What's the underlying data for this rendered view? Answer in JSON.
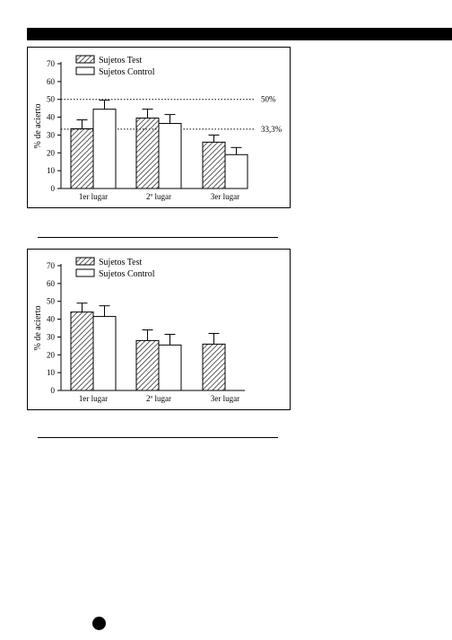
{
  "chart_data": [
    {
      "type": "bar",
      "ylabel": "% de acierto",
      "ylim": [
        0,
        70
      ],
      "yticks": [
        "0",
        "10",
        "20",
        "30",
        "40",
        "50",
        "60",
        "70"
      ],
      "categories": [
        "1er lugar",
        "2º lugar",
        "3er lugar"
      ],
      "series": [
        {
          "name": "Sujetos Test",
          "values": [
            33.5,
            39.5,
            26
          ],
          "errors": [
            5,
            5,
            4
          ]
        },
        {
          "name": "Sujetos Control",
          "values": [
            44.5,
            36.5,
            19
          ],
          "errors": [
            5,
            5,
            4
          ]
        }
      ],
      "reference_lines": [
        {
          "value": 50,
          "label": "50%"
        },
        {
          "value": 33.3,
          "label": "33,3%"
        }
      ],
      "legend": "top-left"
    },
    {
      "type": "bar",
      "ylabel": "% de acierto",
      "ylim": [
        0,
        70
      ],
      "yticks": [
        "0",
        "10",
        "20",
        "30",
        "40",
        "50",
        "60",
        "70"
      ],
      "categories": [
        "1er lugar",
        "2º lugar",
        "3er lugar"
      ],
      "series": [
        {
          "name": "Sujetos Test",
          "values": [
            44,
            28,
            26
          ],
          "errors": [
            5,
            6,
            6
          ]
        },
        {
          "name": "Sujetos Control",
          "values": [
            41.5,
            25.5,
            0
          ],
          "errors": [
            6,
            6,
            0
          ]
        }
      ],
      "legend": "top-left"
    }
  ]
}
